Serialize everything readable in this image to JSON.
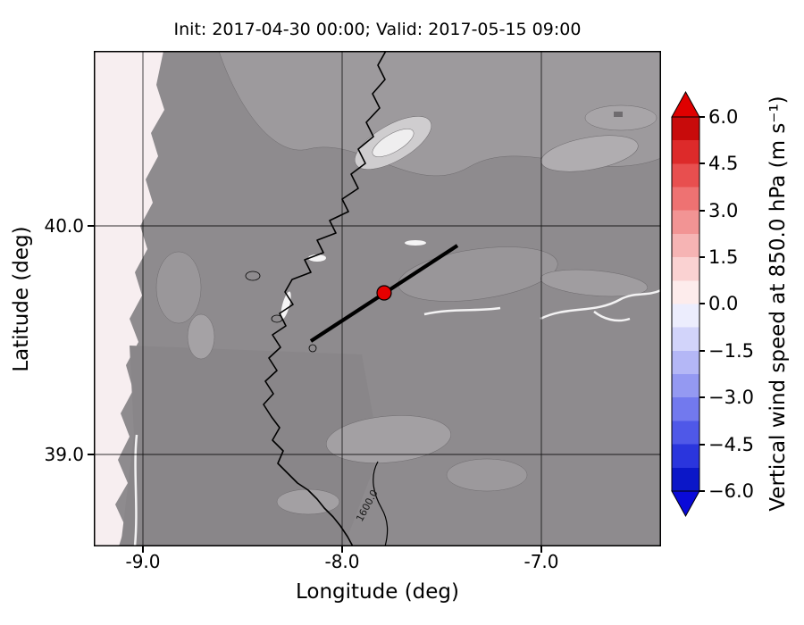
{
  "colors": {
    "figure_bg": "#ffffff",
    "land": "#8e8b8e",
    "ocean": "#f7eef0",
    "terrain_light": "#a3a0a3",
    "terrain_bright": "#e9e7e9",
    "marker": "#e50000",
    "cmap_over": "#df0000",
    "cmap_under": "#0a0ad8",
    "line": "#000000"
  },
  "chart_data": {
    "type": "heatmap",
    "title": "Init: 2017-04-30 00:00; Valid: 2017-05-15 09:00",
    "xlabel": "Longitude (deg)",
    "ylabel": "Latitude (deg)",
    "xlim": [
      -9.25,
      -6.4
    ],
    "ylim": [
      38.6,
      40.77
    ],
    "x_ticks": [
      -9.0,
      -8.0,
      -7.0
    ],
    "x_tick_labels": [
      "-9.0",
      "-8.0",
      "-7.0"
    ],
    "y_ticks": [
      40.0,
      39.0
    ],
    "y_tick_labels": [
      "40.0",
      "39.0"
    ],
    "grid": true,
    "field": "vertical wind speed at 850.0 hPa over terrain shading; values near 0 over most of domain",
    "colorbar": {
      "label": "Vertical wind speed at 850.0 hPa (m s⁻¹)",
      "ticks": [
        6.0,
        4.5,
        3.0,
        1.5,
        0.0,
        -1.5,
        -3.0,
        -4.5,
        -6.0
      ],
      "tick_labels": [
        "6.0",
        "4.5",
        "3.0",
        "1.5",
        "0.0",
        "−1.5",
        "−3.0",
        "−4.5",
        "−6.0"
      ],
      "range": [
        -6.0,
        6.0
      ],
      "extend": "both",
      "colormap": "bwr",
      "segment_colors": [
        "#c80b0b",
        "#dd2a2a",
        "#e84f4f",
        "#ee7272",
        "#f29494",
        "#f6b4b4",
        "#fad2d2",
        "#fdecec",
        "#ecedfd",
        "#d2d4fa",
        "#b4b7f6",
        "#9499f2",
        "#7279ee",
        "#4f58e8",
        "#2a35dd",
        "#0b17c8"
      ]
    },
    "overlays": {
      "cross_section_line": {
        "from_lonlat": [
          -8.16,
          39.5
        ],
        "to_lonlat": [
          -7.42,
          39.91
        ]
      },
      "marker": {
        "lon": -7.79,
        "lat": 39.71,
        "color": "#e50000",
        "shape": "circle"
      },
      "contour_label": "1600.0"
    }
  }
}
